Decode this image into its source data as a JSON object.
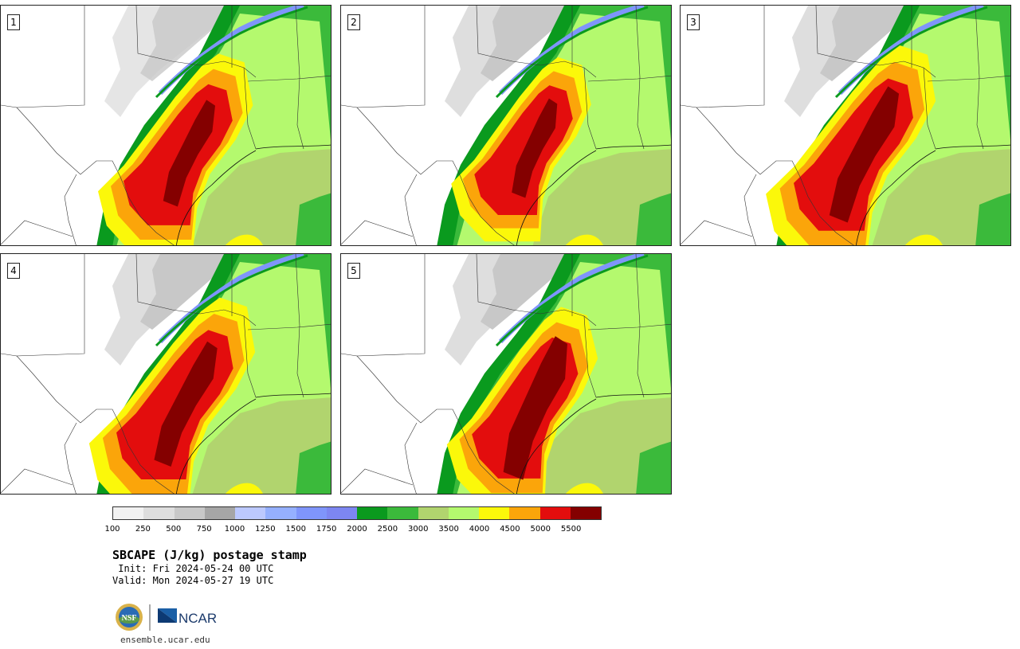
{
  "panels": [
    {
      "label": "1"
    },
    {
      "label": "2"
    },
    {
      "label": "3"
    },
    {
      "label": "4"
    },
    {
      "label": "5"
    }
  ],
  "colorbar": {
    "colors": [
      "#f2f2f2",
      "#dedede",
      "#c8c8c8",
      "#a6a6a6",
      "#bcc9ff",
      "#95b0ff",
      "#7f95fb",
      "#7d86f1",
      "#0a9a1e",
      "#3bba3b",
      "#b1d46e",
      "#b4f96e",
      "#fbf80a",
      "#fba50a",
      "#e30d0d",
      "#840000"
    ],
    "tick_labels": [
      "100",
      "250",
      "500",
      "750",
      "1000",
      "1250",
      "1500",
      "1750",
      "2000",
      "2500",
      "3000",
      "3500",
      "4000",
      "4500",
      "5000",
      "5500"
    ]
  },
  "title": "SBCAPE (J/kg) postage stamp",
  "init_line": " Init: Fri 2024-05-24 00 UTC",
  "valid_line": "Valid: Mon 2024-05-27 19 UTC",
  "logos": {
    "nsf": "NSF",
    "ncar": "NCAR"
  },
  "site": "ensemble.ucar.edu"
}
